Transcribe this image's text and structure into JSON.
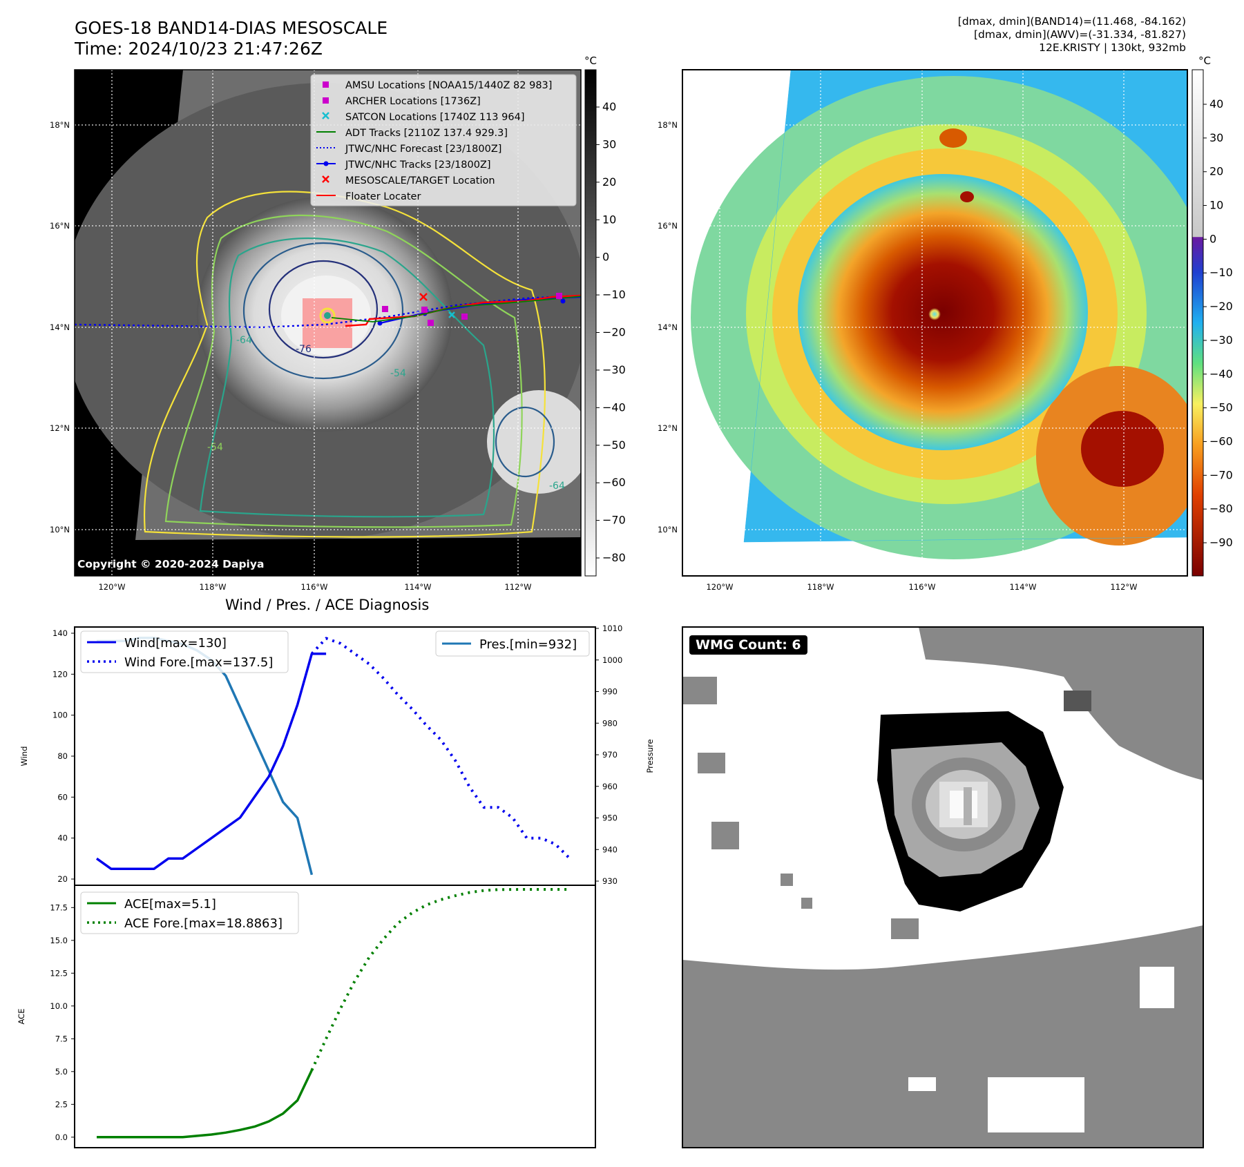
{
  "header": {
    "title_line1": "GOES-18 BAND14-DIAS MESOSCALE",
    "title_line2": "Time: 2024/10/23 21:47:26Z",
    "stats_line1": "[dmax, dmin](BAND14)=(11.468, -84.162)",
    "stats_line2": "[dmax, dmin](AWV)=(-31.334, -81.827)",
    "stats_line3": "12E.KRISTY | 130kt, 932mb"
  },
  "copyright": "Copyright © 2020-2024 Dapiya",
  "diagnosis_title": "Wind / Pres. / ACE Diagnosis",
  "wmg_label": "WMG Count: 6",
  "colors": {
    "wind": "#0000ee",
    "pressure": "#1f77b4",
    "ace": "#008000",
    "floater": "#ff0000",
    "adt": "#008000",
    "amsu": "#cc00cc",
    "satcon": "#17becf"
  },
  "map": {
    "lon_ticks": [
      "120°W",
      "118°W",
      "116°W",
      "114°W",
      "112°W"
    ],
    "lat_ticks": [
      "18°N",
      "16°N",
      "14°N",
      "12°N",
      "10°N"
    ],
    "unit": "°C",
    "gray_colorbar_ticks": [
      "40",
      "30",
      "20",
      "10",
      "0",
      "−10",
      "−20",
      "−30",
      "−40",
      "−50",
      "−60",
      "−70",
      "−80"
    ],
    "color_colorbar_ticks": [
      "40",
      "30",
      "20",
      "10",
      "0",
      "−10",
      "−20",
      "−30",
      "−40",
      "−50",
      "−60",
      "−70",
      "−80",
      "−90"
    ],
    "contour_labels": [
      "-64",
      "-76",
      "-54",
      "-64",
      "-54"
    ],
    "legend": [
      {
        "label": "AMSU Locations [NOAA15/1440Z 82 983]",
        "icon": "square-marker"
      },
      {
        "label": "ARCHER Locations [1736Z]",
        "icon": "square-marker"
      },
      {
        "label": "SATCON Locations [1740Z 113 964]",
        "icon": "x-marker"
      },
      {
        "label": "ADT Tracks [2110Z 137.4 929.3]",
        "icon": "line"
      },
      {
        "label": "JTWC/NHC Forecast [23/1800Z]",
        "icon": "dotted-line"
      },
      {
        "label": "JTWC/NHC Tracks [23/1800Z]",
        "icon": "line-dot"
      },
      {
        "label": "MESOSCALE/TARGET Location",
        "icon": "x-marker"
      },
      {
        "label": "Floater Locater",
        "icon": "line"
      }
    ]
  },
  "chart_data": [
    {
      "type": "line",
      "title": "Wind / Pres. / ACE Diagnosis",
      "ylabel": "Wind",
      "ylim": [
        20,
        140
      ],
      "y_ticks": [
        20,
        40,
        60,
        80,
        100,
        120,
        140
      ],
      "y2label": "Pressure",
      "y2lim": [
        930,
        1010
      ],
      "y2_ticks": [
        930,
        940,
        950,
        960,
        970,
        980,
        990,
        1000,
        1010
      ],
      "x_index_range": [
        0,
        33
      ],
      "legend_left": [
        "Wind[max=130]",
        "Wind Fore.[max=137.5]"
      ],
      "legend_right": [
        "Pres.[min=932]"
      ],
      "series": [
        {
          "name": "Wind[max=130]",
          "axis": "left",
          "style": "solid",
          "x": [
            0,
            1,
            2,
            3,
            4,
            5,
            6,
            7,
            8,
            9,
            10,
            11,
            12,
            13,
            14,
            15,
            16
          ],
          "values": [
            30,
            25,
            25,
            25,
            25,
            30,
            30,
            35,
            40,
            45,
            50,
            60,
            70,
            85,
            105,
            130,
            130
          ]
        },
        {
          "name": "Wind Fore.[max=137.5]",
          "axis": "left",
          "style": "dotted",
          "x": [
            15,
            16,
            17,
            18,
            19,
            20,
            21,
            22,
            23,
            24,
            25,
            26,
            27,
            28,
            29,
            30,
            31,
            32,
            33
          ],
          "values": [
            130,
            137.5,
            135,
            130,
            125,
            118,
            110,
            103,
            95,
            88,
            78,
            65,
            55,
            55,
            50,
            40,
            40,
            37,
            30
          ]
        },
        {
          "name": "Pres.[min=932]",
          "axis": "right",
          "style": "solid",
          "x": [
            0,
            1,
            2,
            3,
            4,
            5,
            6,
            7,
            8,
            9,
            10,
            11,
            12,
            13,
            14,
            15
          ],
          "values": [
            1006,
            1006,
            1006,
            1007,
            1007,
            1006,
            1005,
            1003,
            1000,
            995,
            985,
            975,
            965,
            955,
            950,
            932
          ]
        }
      ]
    },
    {
      "type": "line",
      "ylabel": "ACE",
      "ylim": [
        -0.8,
        19.2
      ],
      "y_ticks": [
        "0.0",
        "2.5",
        "5.0",
        "7.5",
        "10.0",
        "12.5",
        "15.0",
        "17.5"
      ],
      "x_index_range": [
        0,
        33
      ],
      "legend": [
        "ACE[max=5.1]",
        "ACE Fore.[max=18.8863]"
      ],
      "series": [
        {
          "name": "ACE[max=5.1]",
          "style": "solid",
          "x": [
            0,
            1,
            2,
            3,
            4,
            5,
            6,
            7,
            8,
            9,
            10,
            11,
            12,
            13,
            14,
            15
          ],
          "values": [
            0,
            0,
            0,
            0,
            0,
            0,
            0,
            0.1,
            0.2,
            0.35,
            0.55,
            0.8,
            1.2,
            1.8,
            2.8,
            5.1
          ]
        },
        {
          "name": "ACE Fore.[max=18.8863]",
          "style": "dotted",
          "x": [
            15,
            16,
            17,
            18,
            19,
            20,
            21,
            22,
            23,
            24,
            25,
            26,
            27,
            28,
            29,
            30,
            31,
            32,
            33
          ],
          "values": [
            5.1,
            7.5,
            9.8,
            11.9,
            13.7,
            15.1,
            16.3,
            17.1,
            17.7,
            18.1,
            18.4,
            18.65,
            18.8,
            18.87,
            18.88,
            18.8863,
            18.8863,
            18.8863,
            18.8863
          ]
        }
      ]
    }
  ]
}
